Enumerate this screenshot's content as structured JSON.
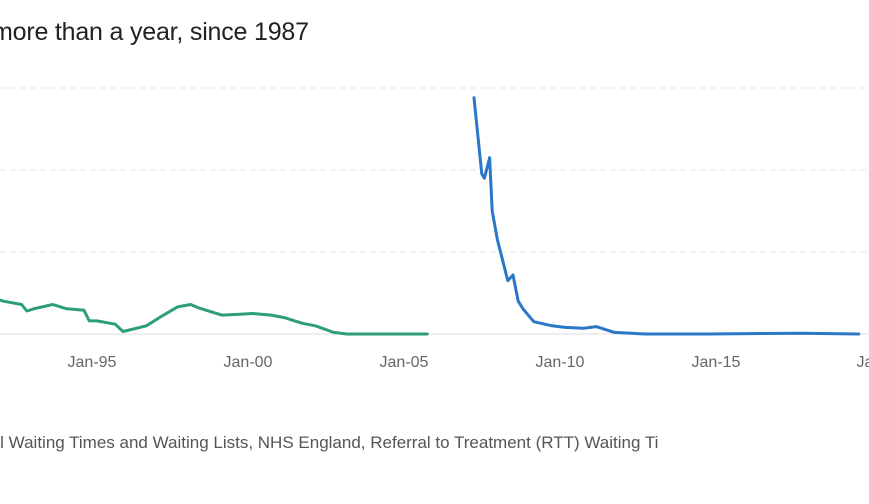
{
  "title": "more than a year, since 1987",
  "source_note": "tal Waiting Times and Waiting Lists, NHS England, Referral to Treatment (RTT) Waiting Ti",
  "chart_data": {
    "type": "line",
    "title": "more than a year, since 1987",
    "xlabel": "",
    "ylabel": "",
    "x_ticks": [
      "Jan-95",
      "Jan-00",
      "Jan-05",
      "Jan-10",
      "Jan-15",
      "Jan-"
    ],
    "x_range": [
      "1991-10",
      "2019-11"
    ],
    "y_range": [
      0,
      300
    ],
    "y_grid_values": [
      0,
      100,
      200,
      300
    ],
    "grid": "horizontal",
    "series": [
      {
        "color": "#2e9e74",
        "points": [
          [
            "1991-11",
            68
          ],
          [
            "1992-01",
            45
          ],
          [
            "1992-06",
            40
          ],
          [
            "1993-01",
            36
          ],
          [
            "1993-03",
            28
          ],
          [
            "1993-06",
            31
          ],
          [
            "1994-01",
            36
          ],
          [
            "1994-06",
            31
          ],
          [
            "1995-01",
            29
          ],
          [
            "1995-03",
            16
          ],
          [
            "1995-06",
            16
          ],
          [
            "1996-01",
            12
          ],
          [
            "1996-04",
            3
          ],
          [
            "1997-01",
            10
          ],
          [
            "1997-06",
            20
          ],
          [
            "1998-01",
            33
          ],
          [
            "1998-06",
            36
          ],
          [
            "1998-09",
            32
          ],
          [
            "1999-03",
            26
          ],
          [
            "1999-06",
            23
          ],
          [
            "2000-01",
            24
          ],
          [
            "2000-06",
            25
          ],
          [
            "2001-01",
            23
          ],
          [
            "2001-06",
            20
          ],
          [
            "2002-01",
            13
          ],
          [
            "2002-06",
            10
          ],
          [
            "2003-01",
            2
          ],
          [
            "2003-06",
            0
          ],
          [
            "2004-01",
            0
          ],
          [
            "2005-01",
            0
          ],
          [
            "2006-01",
            0
          ]
        ]
      },
      {
        "color": "#2a77c9",
        "points": [
          [
            "2007-07",
            288
          ],
          [
            "2007-10",
            195
          ],
          [
            "2007-11",
            190
          ],
          [
            "2008-01",
            215
          ],
          [
            "2008-02",
            150
          ],
          [
            "2008-04",
            115
          ],
          [
            "2008-06",
            90
          ],
          [
            "2008-08",
            65
          ],
          [
            "2008-10",
            72
          ],
          [
            "2008-12",
            40
          ],
          [
            "2009-02",
            30
          ],
          [
            "2009-06",
            15
          ],
          [
            "2010-01",
            10
          ],
          [
            "2010-06",
            8
          ],
          [
            "2011-01",
            7
          ],
          [
            "2011-06",
            9
          ],
          [
            "2012-01",
            2
          ],
          [
            "2013-01",
            0
          ],
          [
            "2015-01",
            0
          ],
          [
            "2018-01",
            1
          ],
          [
            "2019-11",
            0
          ]
        ]
      }
    ]
  }
}
